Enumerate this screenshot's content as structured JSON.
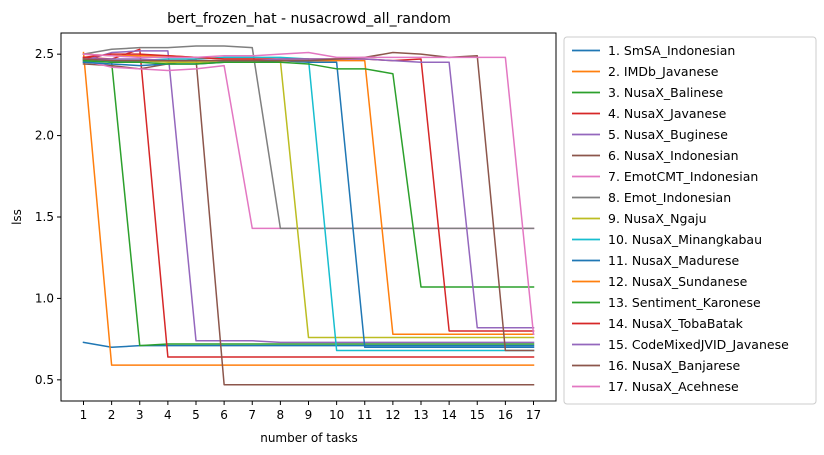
{
  "chart_data": {
    "type": "line",
    "title": "bert_frozen_hat - nusacrowd_all_random",
    "xlabel": "number of tasks",
    "ylabel": "lss",
    "x": [
      1,
      2,
      3,
      4,
      5,
      6,
      7,
      8,
      9,
      10,
      11,
      12,
      13,
      14,
      15,
      16,
      17
    ],
    "xlim": [
      0.2,
      17.8
    ],
    "ylim": [
      0.37,
      2.63
    ],
    "yticks": [
      0.5,
      1.0,
      1.5,
      2.0,
      2.5
    ],
    "ytick_labels": [
      "0.5",
      "1.0",
      "1.5",
      "2.0",
      "2.5"
    ],
    "grid": false,
    "legend": "outside-right",
    "series": [
      {
        "name": "1. SmSA_Indonesian",
        "color": "#1f77b4",
        "values": [
          0.73,
          0.7,
          0.71,
          0.71,
          0.71,
          0.71,
          0.71,
          0.71,
          0.71,
          0.71,
          0.71,
          0.71,
          0.71,
          0.71,
          0.71,
          0.71,
          0.71
        ]
      },
      {
        "name": "2. IMDb_Javanese",
        "color": "#ff7f0e",
        "values": [
          2.51,
          0.59,
          0.59,
          0.59,
          0.59,
          0.59,
          0.59,
          0.59,
          0.59,
          0.59,
          0.59,
          0.59,
          0.59,
          0.59,
          0.59,
          0.59,
          0.59
        ]
      },
      {
        "name": "3. NusaX_Balinese",
        "color": "#2ca02c",
        "values": [
          2.47,
          2.45,
          0.71,
          0.72,
          0.72,
          0.72,
          0.72,
          0.72,
          0.72,
          0.72,
          0.72,
          0.72,
          0.72,
          0.72,
          0.72,
          0.72,
          0.72
        ]
      },
      {
        "name": "4. NusaX_Javanese",
        "color": "#d62728",
        "values": [
          2.48,
          2.47,
          2.53,
          0.64,
          0.64,
          0.64,
          0.64,
          0.64,
          0.64,
          0.64,
          0.64,
          0.64,
          0.64,
          0.64,
          0.64,
          0.64,
          0.64
        ]
      },
      {
        "name": "5. NusaX_Buginese",
        "color": "#9467bd",
        "values": [
          2.46,
          2.51,
          2.52,
          2.52,
          0.74,
          0.74,
          0.74,
          0.73,
          0.73,
          0.73,
          0.73,
          0.73,
          0.73,
          0.73,
          0.73,
          0.73,
          0.73
        ]
      },
      {
        "name": "6. NusaX_Indonesian",
        "color": "#8c564b",
        "values": [
          2.44,
          2.43,
          2.41,
          2.44,
          2.47,
          0.47,
          0.47,
          0.47,
          0.47,
          0.47,
          0.47,
          0.47,
          0.47,
          0.47,
          0.47,
          0.47,
          0.47
        ]
      },
      {
        "name": "7. EmotCMT_Indonesian",
        "color": "#e377c2",
        "values": [
          2.46,
          2.42,
          2.41,
          2.4,
          2.41,
          2.43,
          1.43,
          1.43,
          1.43,
          1.43,
          1.43,
          1.43,
          1.43,
          1.43,
          1.43,
          1.43,
          1.43
        ]
      },
      {
        "name": "8. Emot_Indonesian",
        "color": "#7f7f7f",
        "values": [
          2.5,
          2.53,
          2.54,
          2.54,
          2.55,
          2.55,
          2.54,
          1.43,
          1.43,
          1.43,
          1.43,
          1.43,
          1.43,
          1.43,
          1.43,
          1.43,
          1.43
        ]
      },
      {
        "name": "9. NusaX_Ngaju",
        "color": "#bcbd22",
        "values": [
          2.47,
          2.46,
          2.46,
          2.45,
          2.45,
          2.45,
          2.45,
          2.46,
          0.76,
          0.76,
          0.76,
          0.76,
          0.76,
          0.76,
          0.76,
          0.76,
          0.76
        ]
      },
      {
        "name": "10. NusaX_Minangkabau",
        "color": "#17becf",
        "values": [
          2.45,
          2.46,
          2.46,
          2.47,
          2.47,
          2.48,
          2.48,
          2.48,
          2.47,
          0.68,
          0.68,
          0.68,
          0.68,
          0.68,
          0.68,
          0.68,
          0.68
        ]
      },
      {
        "name": "11. NusaX_Madurese",
        "color": "#1f77b4",
        "values": [
          2.45,
          2.44,
          2.43,
          2.44,
          2.44,
          2.45,
          2.45,
          2.46,
          2.45,
          2.45,
          0.7,
          0.7,
          0.7,
          0.7,
          0.7,
          0.7,
          0.7
        ]
      },
      {
        "name": "12. NusaX_Sundanese",
        "color": "#ff7f0e",
        "values": [
          2.5,
          2.49,
          2.49,
          2.49,
          2.48,
          2.47,
          2.47,
          2.46,
          2.46,
          2.46,
          2.46,
          0.78,
          0.78,
          0.78,
          0.78,
          0.78,
          0.78
        ]
      },
      {
        "name": "13. Sentiment_Karonese",
        "color": "#2ca02c",
        "values": [
          2.46,
          2.45,
          2.45,
          2.44,
          2.44,
          2.45,
          2.45,
          2.45,
          2.44,
          2.41,
          2.41,
          2.38,
          1.07,
          1.07,
          1.07,
          1.07,
          1.07
        ]
      },
      {
        "name": "14. NusaX_TobaBatak",
        "color": "#d62728",
        "values": [
          2.48,
          2.5,
          2.5,
          2.49,
          2.48,
          2.47,
          2.47,
          2.47,
          2.47,
          2.47,
          2.47,
          2.46,
          2.47,
          0.8,
          0.8,
          0.8,
          0.8
        ]
      },
      {
        "name": "15. CodeMixedJVID_Javanese",
        "color": "#9467bd",
        "values": [
          2.47,
          2.47,
          2.47,
          2.46,
          2.46,
          2.46,
          2.46,
          2.47,
          2.47,
          2.47,
          2.47,
          2.46,
          2.45,
          2.45,
          0.82,
          0.82,
          0.82
        ]
      },
      {
        "name": "16. NusaX_Banjarese",
        "color": "#8c564b",
        "values": [
          2.47,
          2.46,
          2.46,
          2.46,
          2.46,
          2.46,
          2.46,
          2.46,
          2.46,
          2.47,
          2.48,
          2.51,
          2.5,
          2.48,
          2.49,
          0.68,
          0.68
        ]
      },
      {
        "name": "17. NusaX_Acehnese",
        "color": "#e377c2",
        "values": [
          2.5,
          2.49,
          2.48,
          2.48,
          2.48,
          2.49,
          2.49,
          2.5,
          2.51,
          2.48,
          2.48,
          2.48,
          2.48,
          2.48,
          2.48,
          2.48,
          0.78
        ]
      }
    ]
  }
}
